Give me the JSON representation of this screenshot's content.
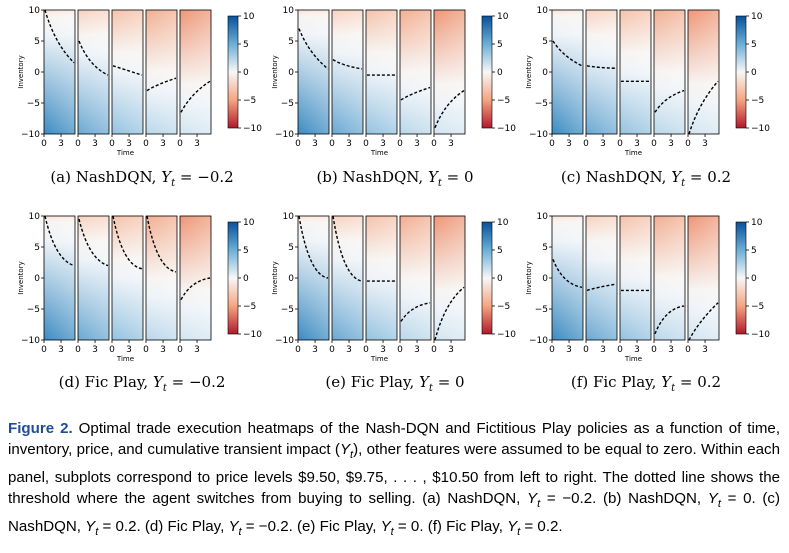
{
  "figure": {
    "x_ticks": [
      "0",
      "3"
    ],
    "x_label": "Time",
    "y_label": "Inventory",
    "y_ticks": [
      "10",
      "5",
      "0",
      "−5",
      "−10"
    ],
    "colorbar_ticks": [
      "10",
      "5",
      "0",
      "−5",
      "−10"
    ],
    "colormap": {
      "positive": "#08519c",
      "zero": "#f7f7f7",
      "negative": "#b2182b"
    },
    "panels": [
      {
        "id": "a",
        "caption_prefix": "(a) NashDQN, ",
        "caption_var": "Y",
        "caption_sub": "t",
        "caption_suffix": " = −0.2",
        "thresholds": [
          [
            10,
            4.5,
            1.5
          ],
          [
            5,
            1,
            -0.5
          ],
          [
            1,
            0.5,
            -0.5
          ],
          [
            -3,
            -2,
            -1
          ],
          [
            -6.5,
            -3.5,
            -1.5
          ]
        ]
      },
      {
        "id": "b",
        "caption_prefix": "(b) NashDQN, ",
        "caption_var": "Y",
        "caption_sub": "t",
        "caption_suffix": " = 0",
        "thresholds": [
          [
            7,
            3,
            0.5
          ],
          [
            2,
            1,
            0.5
          ],
          [
            -0.5,
            -0.5,
            -0.5
          ],
          [
            -4.5,
            -3.5,
            -2.5
          ],
          [
            -9,
            -5,
            -3
          ]
        ]
      },
      {
        "id": "c",
        "caption_prefix": "(c) NashDQN, ",
        "caption_var": "Y",
        "caption_sub": "t",
        "caption_suffix": " = 0.2",
        "thresholds": [
          [
            5,
            2.5,
            1
          ],
          [
            1,
            0.7,
            0.6
          ],
          [
            -1.5,
            -1.5,
            -1.5
          ],
          [
            -6.5,
            -4,
            -3
          ],
          [
            -10,
            -5,
            -1.5
          ]
        ]
      },
      {
        "id": "d",
        "caption_prefix": "(d) Fic Play, ",
        "caption_var": "Y",
        "caption_sub": "t",
        "caption_suffix": " = −0.2",
        "thresholds": [
          [
            10,
            3,
            2
          ],
          [
            9.5,
            3,
            2
          ],
          [
            10,
            2,
            1.5
          ],
          [
            10,
            1.5,
            1
          ],
          [
            -3.5,
            -0.5,
            0
          ]
        ]
      },
      {
        "id": "e",
        "caption_prefix": "(e) Fic Play, ",
        "caption_var": "Y",
        "caption_sub": "t",
        "caption_suffix": " = 0",
        "thresholds": [
          [
            10,
            0.5,
            0
          ],
          [
            10,
            0,
            -0.5
          ],
          [
            -0.5,
            -0.5,
            -0.5
          ],
          [
            -7,
            -4.5,
            -4
          ],
          [
            -10,
            -4,
            -1.5
          ]
        ]
      },
      {
        "id": "f",
        "caption_prefix": "(f) Fic Play, ",
        "caption_var": "Y",
        "caption_sub": "t",
        "caption_suffix": " = 0.2",
        "thresholds": [
          [
            3,
            -1,
            -1.5
          ],
          [
            -2,
            -1.5,
            -1
          ],
          [
            -2,
            -2,
            -2
          ],
          [
            -9,
            -5,
            -4.5
          ],
          [
            -10,
            -7,
            -4
          ]
        ]
      }
    ]
  },
  "caption": {
    "label": "Figure 2.",
    "body": " Optimal trade execution heatmaps of the Nash-DQN and Fictitious Play policies as a function of time, inventory, price, and cumulative transient impact (",
    "var_Y": "Y",
    "sub_t": "t",
    "body2": "), other features were assumed to be equal to zero. Within each panel, subplots correspond to price levels $9.50, $9.75, . . . , $10.50 from left to right. The dotted line shows the threshold where the agent switches from buying to selling. (a) NashDQN, ",
    "items": [
      {
        "y": "Y",
        "t": "t",
        "val": " = −0.2. (b) NashDQN, "
      },
      {
        "y": "Y",
        "t": "t",
        "val": " = 0. (c) NashDQN, "
      },
      {
        "y": "Y",
        "t": "t",
        "val": " = 0.2. (d) Fic Play, "
      },
      {
        "y": "Y",
        "t": "t",
        "val": " = −0.2. (e) Fic Play, "
      },
      {
        "y": "Y",
        "t": "t",
        "val": " = 0. (f) Fic Play, "
      },
      {
        "y": "Y",
        "t": "t",
        "val": " = 0.2."
      }
    ]
  }
}
